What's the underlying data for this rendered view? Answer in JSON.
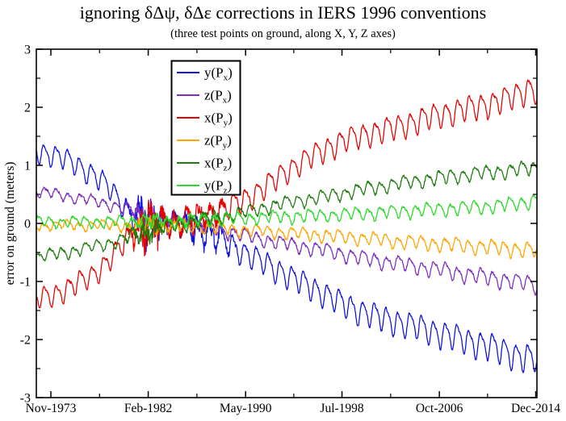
{
  "chart_data": {
    "type": "line",
    "title": "ignoring δΔψ, δΔε corrections in IERS 1996 conventions",
    "subtitle": "(three test points on ground, along X, Y, Z axes)",
    "ylabel": "error on ground (meters)",
    "ylim": [
      -3,
      3
    ],
    "ytick_step": 1,
    "ytick_minor_step": 0.5,
    "ytick_labels": [
      "-3",
      "-2",
      "-1",
      "0",
      "1",
      "2",
      "3"
    ],
    "grid": false,
    "legend_position": "upper-left-inside",
    "x_range_years": [
      1972.64,
      2015.06
    ],
    "xticks": [
      {
        "label": "Nov-1973",
        "year": 1973.875
      },
      {
        "label": "Feb-1982",
        "year": 1982.125
      },
      {
        "label": "May-1990",
        "year": 1990.375
      },
      {
        "label": "Jul-1998",
        "year": 1998.542
      },
      {
        "label": "Oct-2006",
        "year": 2006.792
      },
      {
        "label": "Dec-2014",
        "year": 2014.958
      }
    ],
    "annual_period_years": 1,
    "noise_burst": {
      "center": 1982.1,
      "sigma": 1.15
    },
    "series": [
      {
        "name": "y(Px)",
        "label": {
          "main": "y(P",
          "sub": "x",
          "close": ")"
        },
        "color": "#0f0fe0",
        "osc_amp": [
          0.16,
          0.21
        ],
        "osc_phase": 0.9,
        "noise_base": 0.02,
        "burst_amp": 0.36,
        "trend": [
          [
            1972.64,
            1.25
          ],
          [
            1974,
            1.18
          ],
          [
            1975,
            1.12
          ],
          [
            1976,
            1.02
          ],
          [
            1977,
            0.9
          ],
          [
            1978,
            0.76
          ],
          [
            1979,
            0.58
          ],
          [
            1980,
            0.32
          ],
          [
            1980.8,
            0.12
          ],
          [
            1982,
            0.04
          ],
          [
            1984,
            0.0
          ],
          [
            1985.5,
            -0.06
          ],
          [
            1987,
            -0.16
          ],
          [
            1988.5,
            -0.3
          ],
          [
            1990,
            -0.48
          ],
          [
            1992,
            -0.68
          ],
          [
            1994,
            -0.9
          ],
          [
            1996,
            -1.1
          ],
          [
            1998,
            -1.32
          ],
          [
            2000,
            -1.5
          ],
          [
            2002,
            -1.63
          ],
          [
            2004,
            -1.73
          ],
          [
            2006,
            -1.84
          ],
          [
            2008,
            -1.95
          ],
          [
            2010,
            -2.06
          ],
          [
            2012,
            -2.18
          ],
          [
            2013.5,
            -2.28
          ],
          [
            2014.7,
            -2.33
          ],
          [
            2015.06,
            -2.3
          ]
        ]
      },
      {
        "name": "z(Px)",
        "label": {
          "main": "z(P",
          "sub": "x",
          "close": ")"
        },
        "color": "#7d2fbe",
        "osc_amp": [
          0.07,
          0.12
        ],
        "osc_phase": 0.88,
        "noise_base": 0.02,
        "burst_amp": 0.14,
        "trend": [
          [
            1972.64,
            0.55
          ],
          [
            1975,
            0.48
          ],
          [
            1977,
            0.41
          ],
          [
            1979,
            0.32
          ],
          [
            1981,
            0.2
          ],
          [
            1983,
            0.08
          ],
          [
            1985,
            0.0
          ],
          [
            1987,
            -0.07
          ],
          [
            1989,
            -0.14
          ],
          [
            1991,
            -0.24
          ],
          [
            1993,
            -0.32
          ],
          [
            1995,
            -0.39
          ],
          [
            1997,
            -0.46
          ],
          [
            1999,
            -0.54
          ],
          [
            2001,
            -0.62
          ],
          [
            2003,
            -0.68
          ],
          [
            2005,
            -0.74
          ],
          [
            2007,
            -0.8
          ],
          [
            2009,
            -0.87
          ],
          [
            2011,
            -0.93
          ],
          [
            2013,
            -0.99
          ],
          [
            2015.06,
            -1.05
          ]
        ]
      },
      {
        "name": "x(Py)",
        "label": {
          "main": "x(P",
          "sub": "y",
          "close": ")"
        },
        "color": "#e60000",
        "osc_amp": [
          0.16,
          0.19
        ],
        "osc_phase": 0.85,
        "noise_base": 0.02,
        "burst_amp": 0.36,
        "trend": [
          [
            1972.64,
            -1.3
          ],
          [
            1974,
            -1.23
          ],
          [
            1975,
            -1.16
          ],
          [
            1976,
            -1.05
          ],
          [
            1977,
            -0.93
          ],
          [
            1978,
            -0.79
          ],
          [
            1979,
            -0.6
          ],
          [
            1980,
            -0.34
          ],
          [
            1980.8,
            -0.14
          ],
          [
            1982,
            -0.05
          ],
          [
            1984,
            0.0
          ],
          [
            1985.5,
            0.07
          ],
          [
            1987,
            0.15
          ],
          [
            1988.5,
            0.25
          ],
          [
            1990,
            0.37
          ],
          [
            1992,
            0.63
          ],
          [
            1994,
            0.92
          ],
          [
            1996,
            1.16
          ],
          [
            1997.5,
            1.32
          ],
          [
            1999,
            1.45
          ],
          [
            2001,
            1.56
          ],
          [
            2003,
            1.65
          ],
          [
            2005,
            1.77
          ],
          [
            2007,
            1.88
          ],
          [
            2009,
            1.97
          ],
          [
            2011,
            2.06
          ],
          [
            2013,
            2.18
          ],
          [
            2014.5,
            2.33
          ],
          [
            2015.06,
            2.27
          ]
        ]
      },
      {
        "name": "z(Py)",
        "label": {
          "main": "z(P",
          "sub": "y",
          "close": ")"
        },
        "color": "#ffa500",
        "osc_amp": [
          0.06,
          0.11
        ],
        "osc_phase": 0.95,
        "noise_base": 0.02,
        "burst_amp": 0.09,
        "trend": [
          [
            1972.64,
            -0.03
          ],
          [
            1978,
            -0.03
          ],
          [
            1982,
            -0.04
          ],
          [
            1985,
            -0.05
          ],
          [
            1988,
            -0.08
          ],
          [
            1991,
            -0.12
          ],
          [
            1994,
            -0.16
          ],
          [
            1997,
            -0.2
          ],
          [
            2000,
            -0.25
          ],
          [
            2003,
            -0.3
          ],
          [
            2006,
            -0.34
          ],
          [
            2009,
            -0.38
          ],
          [
            2012,
            -0.42
          ],
          [
            2015.06,
            -0.46
          ]
        ]
      },
      {
        "name": "x(Pz)",
        "label": {
          "main": "x(P",
          "sub": "z",
          "close": ")"
        },
        "color": "#1f7d0f",
        "osc_amp": [
          0.08,
          0.1
        ],
        "osc_phase": 0.42,
        "noise_base": 0.02,
        "burst_amp": 0.14,
        "trend": [
          [
            1972.64,
            -0.58
          ],
          [
            1975,
            -0.5
          ],
          [
            1977,
            -0.42
          ],
          [
            1979,
            -0.33
          ],
          [
            1981,
            -0.2
          ],
          [
            1983,
            -0.08
          ],
          [
            1985,
            0.0
          ],
          [
            1987,
            0.07
          ],
          [
            1989,
            0.14
          ],
          [
            1991,
            0.23
          ],
          [
            1993,
            0.32
          ],
          [
            1995,
            0.4
          ],
          [
            1997,
            0.46
          ],
          [
            1999,
            0.54
          ],
          [
            2001,
            0.61
          ],
          [
            2003,
            0.68
          ],
          [
            2005,
            0.74
          ],
          [
            2007,
            0.79
          ],
          [
            2009,
            0.84
          ],
          [
            2011,
            0.88
          ],
          [
            2013,
            0.92
          ],
          [
            2015.06,
            0.97
          ]
        ]
      },
      {
        "name": "y(Pz)",
        "label": {
          "main": "y(P",
          "sub": "z",
          "close": ")"
        },
        "color": "#2cd92c",
        "osc_amp": [
          0.07,
          0.1
        ],
        "osc_phase": 0.45,
        "noise_base": 0.02,
        "burst_amp": 0.07,
        "trend": [
          [
            1972.64,
            0.03
          ],
          [
            1978,
            0.03
          ],
          [
            1982,
            0.04
          ],
          [
            1985,
            0.05
          ],
          [
            1988,
            0.07
          ],
          [
            1991,
            0.1
          ],
          [
            1994,
            0.12
          ],
          [
            1997,
            0.14
          ],
          [
            2000,
            0.17
          ],
          [
            2003,
            0.2
          ],
          [
            2006,
            0.24
          ],
          [
            2009,
            0.27
          ],
          [
            2012,
            0.31
          ],
          [
            2014,
            0.36
          ],
          [
            2015.06,
            0.42
          ]
        ]
      }
    ]
  }
}
